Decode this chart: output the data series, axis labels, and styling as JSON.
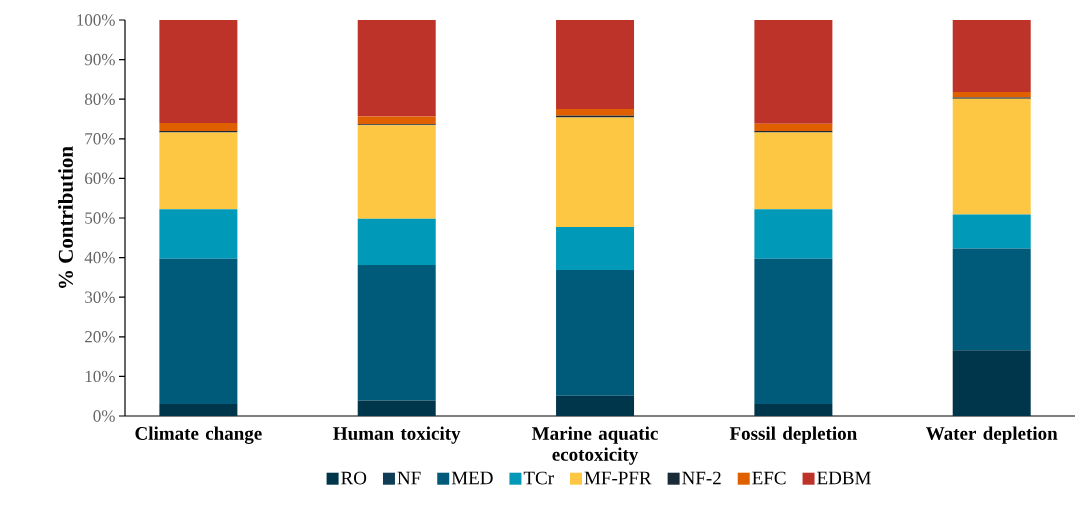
{
  "chart_data": {
    "type": "bar",
    "stacked": true,
    "ylabel": "% Contribution",
    "categories": [
      "Climate change",
      "Human toxicity",
      "Marine aquatic ecotoxicity",
      "Fossil depletion",
      "Water depletion"
    ],
    "series": [
      {
        "name": "RO",
        "color": "#00364b",
        "values": [
          3.0,
          3.9,
          5.1,
          3.0,
          16.6
        ]
      },
      {
        "name": "NF",
        "color": "#0e3d55",
        "values": [
          0,
          0,
          0,
          0,
          0
        ]
      },
      {
        "name": "MED",
        "color": "#005b7b",
        "values": [
          36.7,
          34.2,
          31.8,
          36.7,
          25.7
        ]
      },
      {
        "name": "TCr",
        "color": "#0099b8",
        "values": [
          12.5,
          11.7,
          10.8,
          12.5,
          8.6
        ]
      },
      {
        "name": "MF-PFR",
        "color": "#fdc743",
        "values": [
          19.4,
          23.6,
          27.7,
          19.4,
          29.2
        ]
      },
      {
        "name": "NF-2",
        "color": "#1a2b38",
        "values": [
          0.4,
          0.3,
          0.4,
          0.4,
          0.3
        ]
      },
      {
        "name": "EFC",
        "color": "#e06000",
        "values": [
          2.0,
          1.9,
          1.7,
          1.8,
          1.4
        ]
      },
      {
        "name": "EDBM",
        "color": "#bd3229",
        "values": [
          26.0,
          24.4,
          22.5,
          26.2,
          18.2
        ]
      }
    ],
    "ylim": [
      0,
      100
    ],
    "yticks": [
      {
        "value": 0,
        "label": "0%"
      },
      {
        "value": 10,
        "label": "10%"
      },
      {
        "value": 20,
        "label": "20%"
      },
      {
        "value": 30,
        "label": "30%"
      },
      {
        "value": 40,
        "label": "40%"
      },
      {
        "value": 50,
        "label": "50%"
      },
      {
        "value": 60,
        "label": "60%"
      },
      {
        "value": 70,
        "label": "70%"
      },
      {
        "value": 80,
        "label": "80%"
      },
      {
        "value": 90,
        "label": "90%"
      },
      {
        "value": 100,
        "label": "100%"
      }
    ],
    "grid": false,
    "legend": "bottom"
  }
}
